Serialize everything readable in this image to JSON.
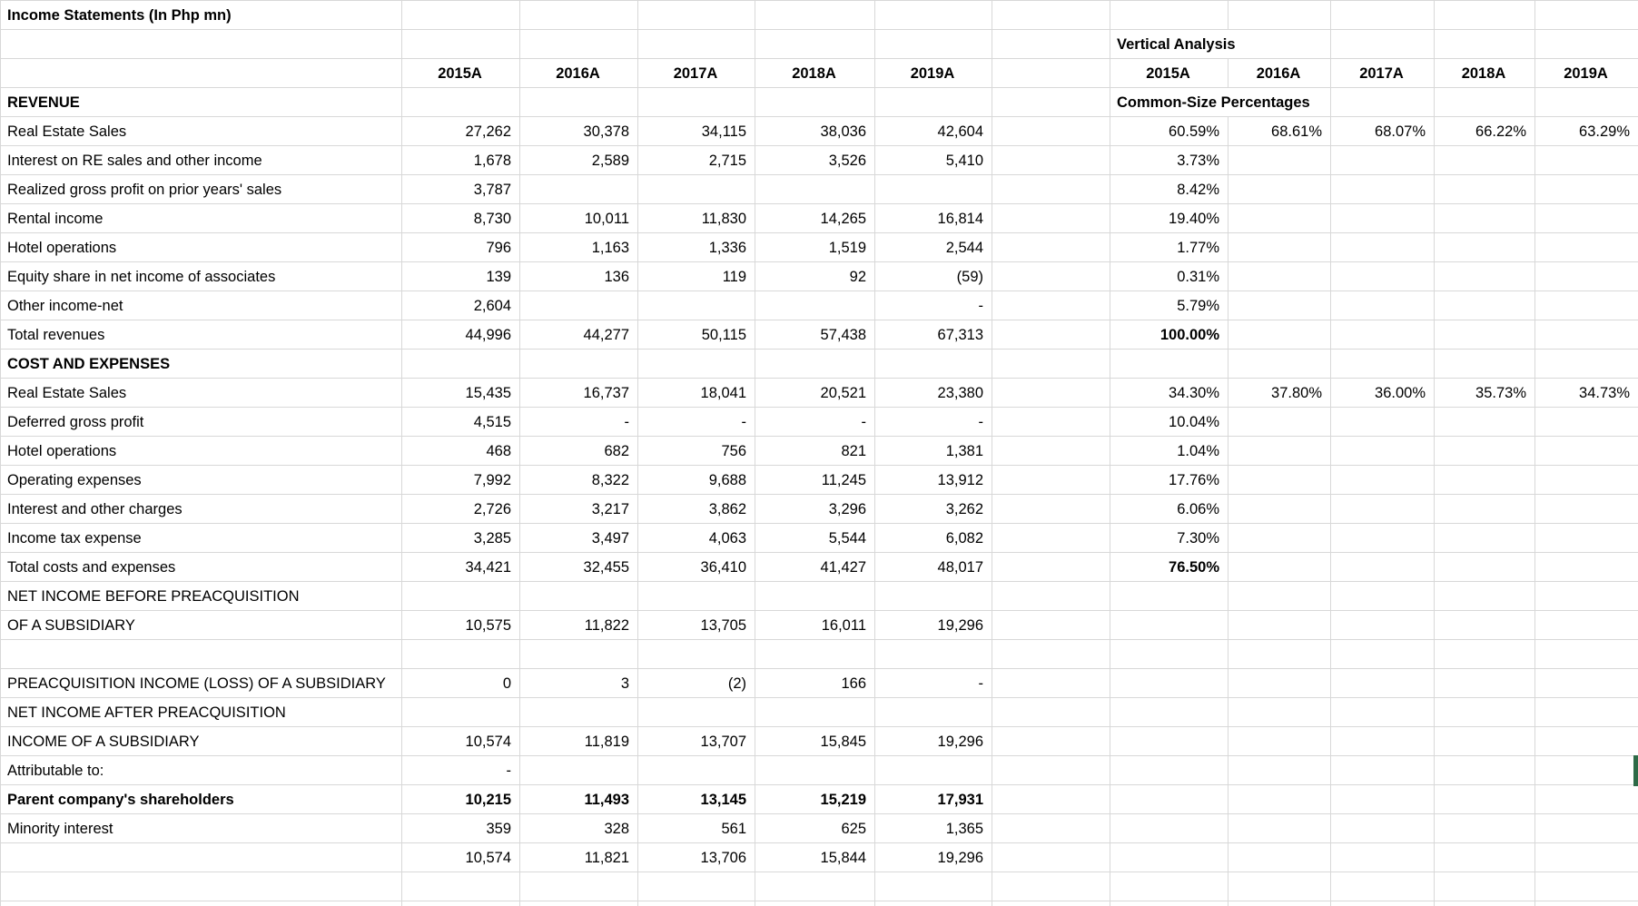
{
  "sheet": {
    "title": "Income Statements (In Php mn)",
    "va_title": "Vertical Analysis",
    "va_subtitle": "Common-Size Percentages",
    "year_headers": [
      "2015A",
      "2016A",
      "2017A",
      "2018A",
      "2019A"
    ],
    "selection_color": "#2e6a47",
    "grid_color": "#d8d8d8",
    "rows": [
      {
        "label": "Income Statements (In Php mn)",
        "label_bold": true,
        "label_name": "sheet-title-cell"
      },
      {
        "va_span": "Vertical Analysis",
        "va_name": "va-title-cell"
      },
      {
        "headers": true
      },
      {
        "label": "REVENUE",
        "label_bold": true,
        "va_span": "Common-Size Percentages",
        "va_name": "va-subtitle-cell"
      },
      {
        "label": "Real Estate Sales",
        "indent": 1,
        "values": [
          "27,262",
          "30,378",
          "34,115",
          "38,036",
          "42,604"
        ],
        "va": [
          "60.59%",
          "68.61%",
          "68.07%",
          "66.22%",
          "63.29%"
        ]
      },
      {
        "label": "Interest on RE sales and other income",
        "indent": 1,
        "values": [
          "1,678",
          "2,589",
          "2,715",
          "3,526",
          "5,410"
        ],
        "va": [
          "3.73%",
          "",
          "",
          "",
          ""
        ]
      },
      {
        "label": "Realized gross profit on prior years' sales",
        "indent": 1,
        "values": [
          "3,787",
          "",
          "",
          "",
          ""
        ],
        "va": [
          "8.42%",
          "",
          "",
          "",
          ""
        ]
      },
      {
        "label": "Rental income",
        "indent": 1,
        "values": [
          "8,730",
          "10,011",
          "11,830",
          "14,265",
          "16,814"
        ],
        "va": [
          "19.40%",
          "",
          "",
          "",
          ""
        ]
      },
      {
        "label": "Hotel operations",
        "indent": 1,
        "values": [
          "796",
          "1,163",
          "1,336",
          "1,519",
          "2,544"
        ],
        "va": [
          "1.77%",
          "",
          "",
          "",
          ""
        ]
      },
      {
        "label": "Equity share in net income of associates",
        "indent": 1,
        "values": [
          "139",
          "136",
          "119",
          "92",
          "(59)"
        ],
        "va": [
          "0.31%",
          "",
          "",
          "",
          ""
        ]
      },
      {
        "label": "Other income-net",
        "indent": 1,
        "values": [
          "2,604",
          "",
          "",
          "",
          "-"
        ],
        "va": [
          "5.79%",
          "",
          "",
          "",
          ""
        ]
      },
      {
        "label": "Total revenues",
        "values": [
          "44,996",
          "44,277",
          "50,115",
          "57,438",
          "67,313"
        ],
        "va": [
          "100.00%",
          "",
          "",
          "",
          ""
        ],
        "va_bold": true,
        "va_rule": true
      },
      {
        "label": "COST AND EXPENSES",
        "label_bold": true
      },
      {
        "label": "Real Estate Sales",
        "indent": 1,
        "values": [
          "15,435",
          "16,737",
          "18,041",
          "20,521",
          "23,380"
        ],
        "va": [
          "34.30%",
          "37.80%",
          "36.00%",
          "35.73%",
          "34.73%"
        ]
      },
      {
        "label": "Deferred gross profit",
        "indent": 1,
        "values": [
          "4,515",
          "-",
          "-",
          "-",
          "-"
        ],
        "va": [
          "10.04%",
          "",
          "",
          "",
          ""
        ]
      },
      {
        "label": "Hotel operations",
        "indent": 1,
        "values": [
          "468",
          "682",
          "756",
          "821",
          "1,381"
        ],
        "va": [
          "1.04%",
          "",
          "",
          "",
          ""
        ]
      },
      {
        "label": "Operating expenses",
        "indent": 1,
        "values": [
          "7,992",
          "8,322",
          "9,688",
          "11,245",
          "13,912"
        ],
        "va": [
          "17.76%",
          "",
          "",
          "",
          ""
        ]
      },
      {
        "label": "Interest and other charges",
        "indent": 1,
        "values": [
          "2,726",
          "3,217",
          "3,862",
          "3,296",
          "3,262"
        ],
        "va": [
          "6.06%",
          "",
          "",
          "",
          ""
        ]
      },
      {
        "label": "Income tax expense",
        "indent": 1,
        "values": [
          "3,285",
          "3,497",
          "4,063",
          "5,544",
          "6,082"
        ],
        "va": [
          "7.30%",
          "",
          "",
          "",
          ""
        ]
      },
      {
        "label": "Total costs and expenses",
        "values": [
          "34,421",
          "32,455",
          "36,410",
          "41,427",
          "48,017"
        ],
        "va": [
          "76.50%",
          "",
          "",
          "",
          ""
        ],
        "va_bold": true,
        "va_rule": true
      },
      {
        "label": "NET INCOME BEFORE PREACQUISITION"
      },
      {
        "label": "OF A SUBSIDIARY",
        "values": [
          "10,575",
          "11,822",
          "13,705",
          "16,011",
          "19,296"
        ]
      },
      {},
      {
        "label": "PREACQUISITION INCOME (LOSS) OF A SUBSIDIARY",
        "values": [
          "0",
          "3",
          "(2)",
          "166",
          "-"
        ]
      },
      {
        "label": "NET INCOME AFTER PREACQUISITION"
      },
      {
        "label": "INCOME OF A SUBSIDIARY",
        "indent": 1,
        "values": [
          "10,574",
          "11,819",
          "13,707",
          "15,845",
          "19,296"
        ]
      },
      {
        "label": "Attributable to:",
        "values": [
          "-",
          "",
          "",
          "",
          ""
        ]
      },
      {
        "label": "Parent company's shareholders",
        "label_bold": true,
        "indent": 1,
        "values": [
          "10,215",
          "11,493",
          "13,145",
          "15,219",
          "17,931"
        ],
        "values_bold": true
      },
      {
        "label": "Minority interest",
        "indent": 1,
        "values": [
          "359",
          "328",
          "561",
          "625",
          "1,365"
        ]
      },
      {
        "values": [
          "10,574",
          "11,821",
          "13,706",
          "15,844",
          "19,296"
        ]
      },
      {},
      {}
    ]
  }
}
